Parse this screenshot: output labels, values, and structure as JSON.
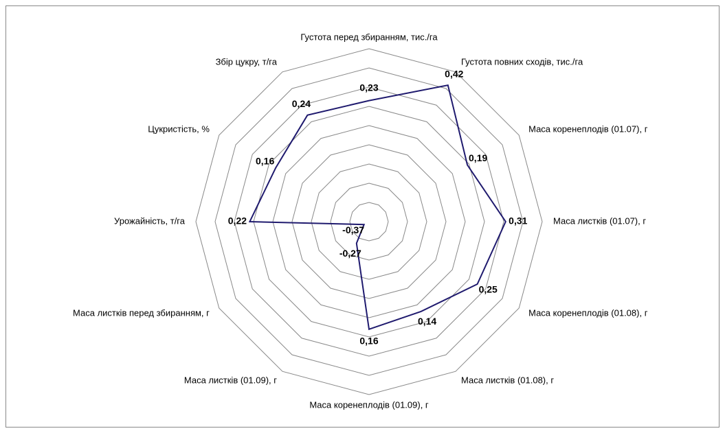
{
  "chart_data": {
    "type": "radar",
    "categories": [
      "Густота перед збиранням, тис./га",
      "Густота повних сходів, тис./га",
      "Маса коренеплодів (01.07), г",
      "Маса листків (01.07), г",
      "Маса коренеплодів (01.08), г",
      "Маса листків (01.08), г",
      "Маса коренеплодів (01.09), г",
      "Маса листків (01.09), г",
      "Маса листків перед збиранням, г",
      "Урожайність, т/га",
      "Цукристість, %",
      "Збір цукру, т/га"
    ],
    "values": [
      0.23,
      0.42,
      0.19,
      0.31,
      0.25,
      0.14,
      0.16,
      -0.27,
      -0.37,
      0.22,
      0.16,
      0.24
    ],
    "value_labels": [
      "0,23",
      "0,42",
      "0,19",
      "0,31",
      "0,25",
      "0,14",
      "0,16",
      "-0,27",
      "-0,37",
      "0,22",
      "0,16",
      "0,24"
    ],
    "color": "#1f1a6e",
    "ylim": [
      -0.4,
      0.5
    ],
    "yticks": [
      -0.3,
      -0.2,
      -0.1,
      0,
      0.1,
      0.2,
      0.3,
      0.4,
      0.5
    ],
    "grid": true
  }
}
